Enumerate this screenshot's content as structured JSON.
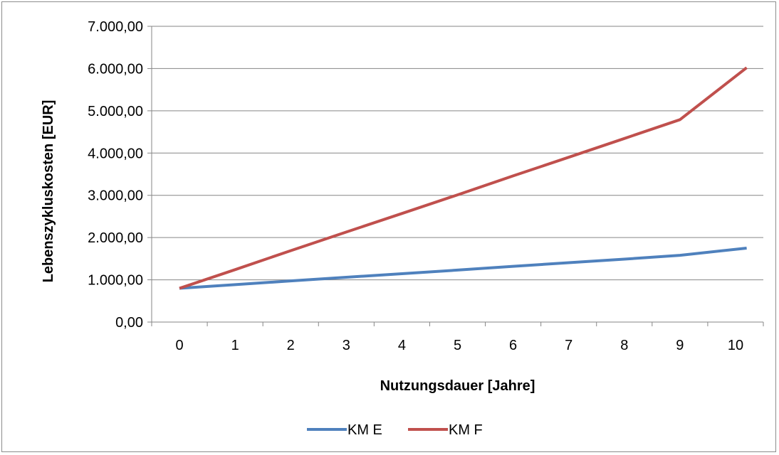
{
  "chart_data": {
    "type": "line",
    "x": [
      0,
      1,
      2,
      3,
      4,
      5,
      6,
      7,
      8,
      9,
      10
    ],
    "categories": [
      "0",
      "1",
      "2",
      "3",
      "4",
      "5",
      "6",
      "7",
      "8",
      "9",
      "10"
    ],
    "series": [
      {
        "name": "KM E",
        "color": "#4f81bd",
        "values": [
          800,
          885,
          975,
          1060,
          1145,
          1230,
          1320,
          1405,
          1490,
          1580,
          1665
        ]
      },
      {
        "name": "KM F",
        "color": "#c0504d",
        "values": [
          800,
          1240,
          1690,
          2130,
          2570,
          3010,
          3460,
          3900,
          4345,
          4790,
          5230
        ]
      }
    ],
    "series_extend_last_to": [
      {
        "x": 10.2,
        "values": [
          1750,
          6020
        ]
      }
    ],
    "xlabel": "Nutzungsdauer [Jahre]",
    "ylabel": "Lebenszykluskosten [EUR]",
    "yticks": [
      "0,00",
      "1.000,00",
      "2.000,00",
      "3.000,00",
      "4.000,00",
      "5.000,00",
      "6.000,00",
      "7.000,00"
    ],
    "ylim": [
      0,
      7000
    ],
    "grid": "horizontal",
    "legend_position": "bottom",
    "gridline_color": "#868686"
  }
}
